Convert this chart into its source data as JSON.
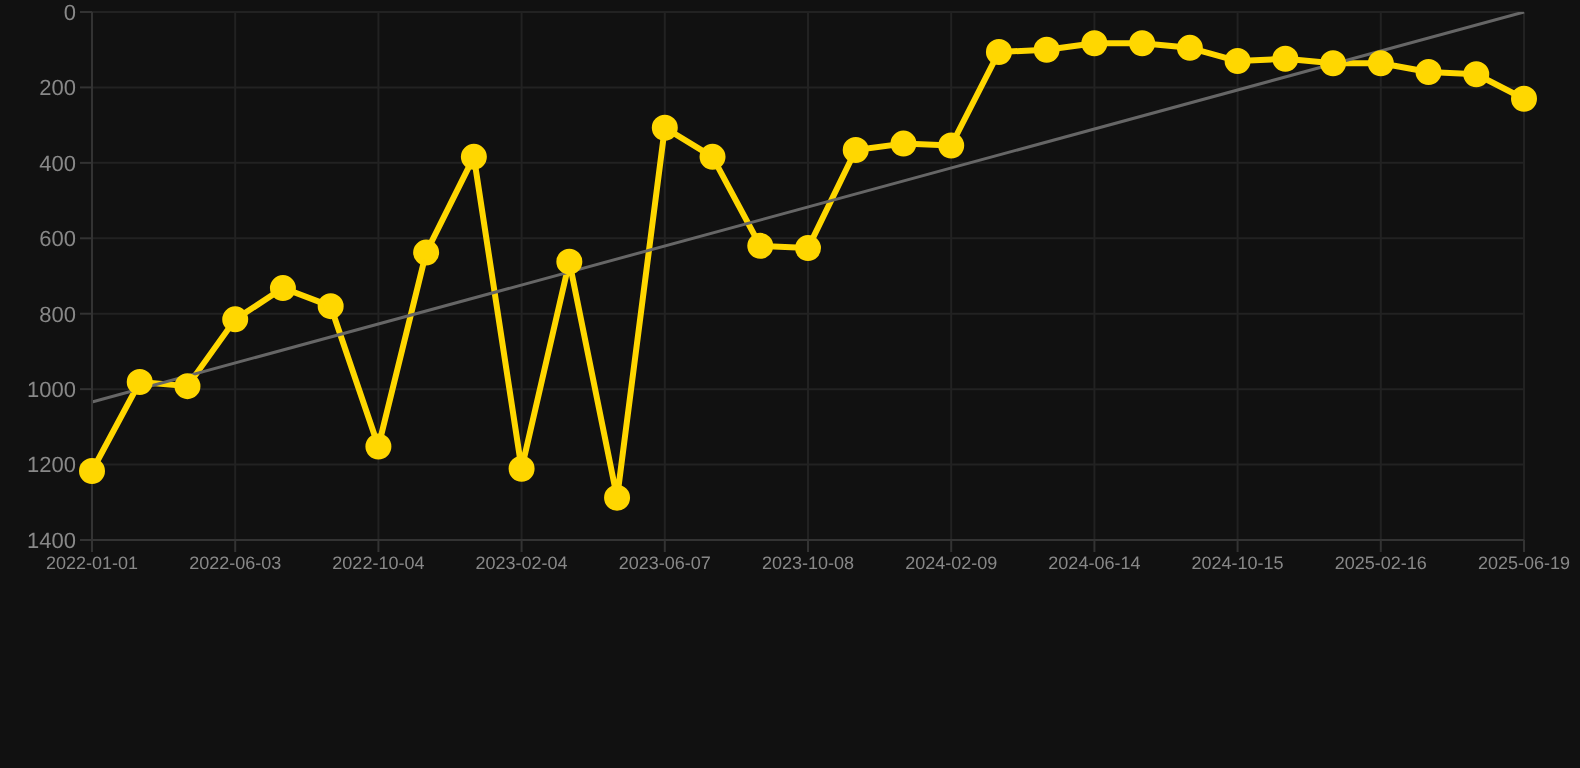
{
  "chart_data": {
    "type": "line",
    "categories": [
      "2022-01-01",
      null,
      null,
      "2022-06-03",
      null,
      null,
      "2022-10-04",
      null,
      null,
      "2023-02-04",
      null,
      null,
      "2023-06-07",
      null,
      null,
      "2023-10-08",
      null,
      null,
      "2024-02-09",
      null,
      null,
      "2024-06-14",
      null,
      null,
      "2024-10-15",
      null,
      null,
      "2025-02-16",
      null,
      null,
      "2025-06-19"
    ],
    "series": [
      {
        "color": "#ffd700",
        "marker": "circle",
        "values": [
          1217,
          981,
          992,
          815,
          732,
          780,
          1152,
          638,
          384,
          1211,
          662,
          1288,
          307,
          384,
          620,
          626,
          366,
          349,
          354,
          106,
          100,
          83,
          83,
          95,
          130,
          124,
          136,
          136,
          159,
          165,
          230
        ]
      },
      {
        "type": "line",
        "color": "#666666",
        "marker": "none",
        "values": [
          1034,
          null,
          null,
          null,
          null,
          null,
          null,
          null,
          null,
          null,
          null,
          null,
          null,
          null,
          null,
          null,
          null,
          null,
          null,
          null,
          null,
          null,
          null,
          null,
          null,
          null,
          null,
          null,
          null,
          null,
          0
        ]
      }
    ],
    "ylim": [
      1400,
      0
    ],
    "yticks": [
      0,
      200,
      400,
      600,
      800,
      1000,
      1200,
      1400
    ],
    "grid": true,
    "legend": false
  }
}
